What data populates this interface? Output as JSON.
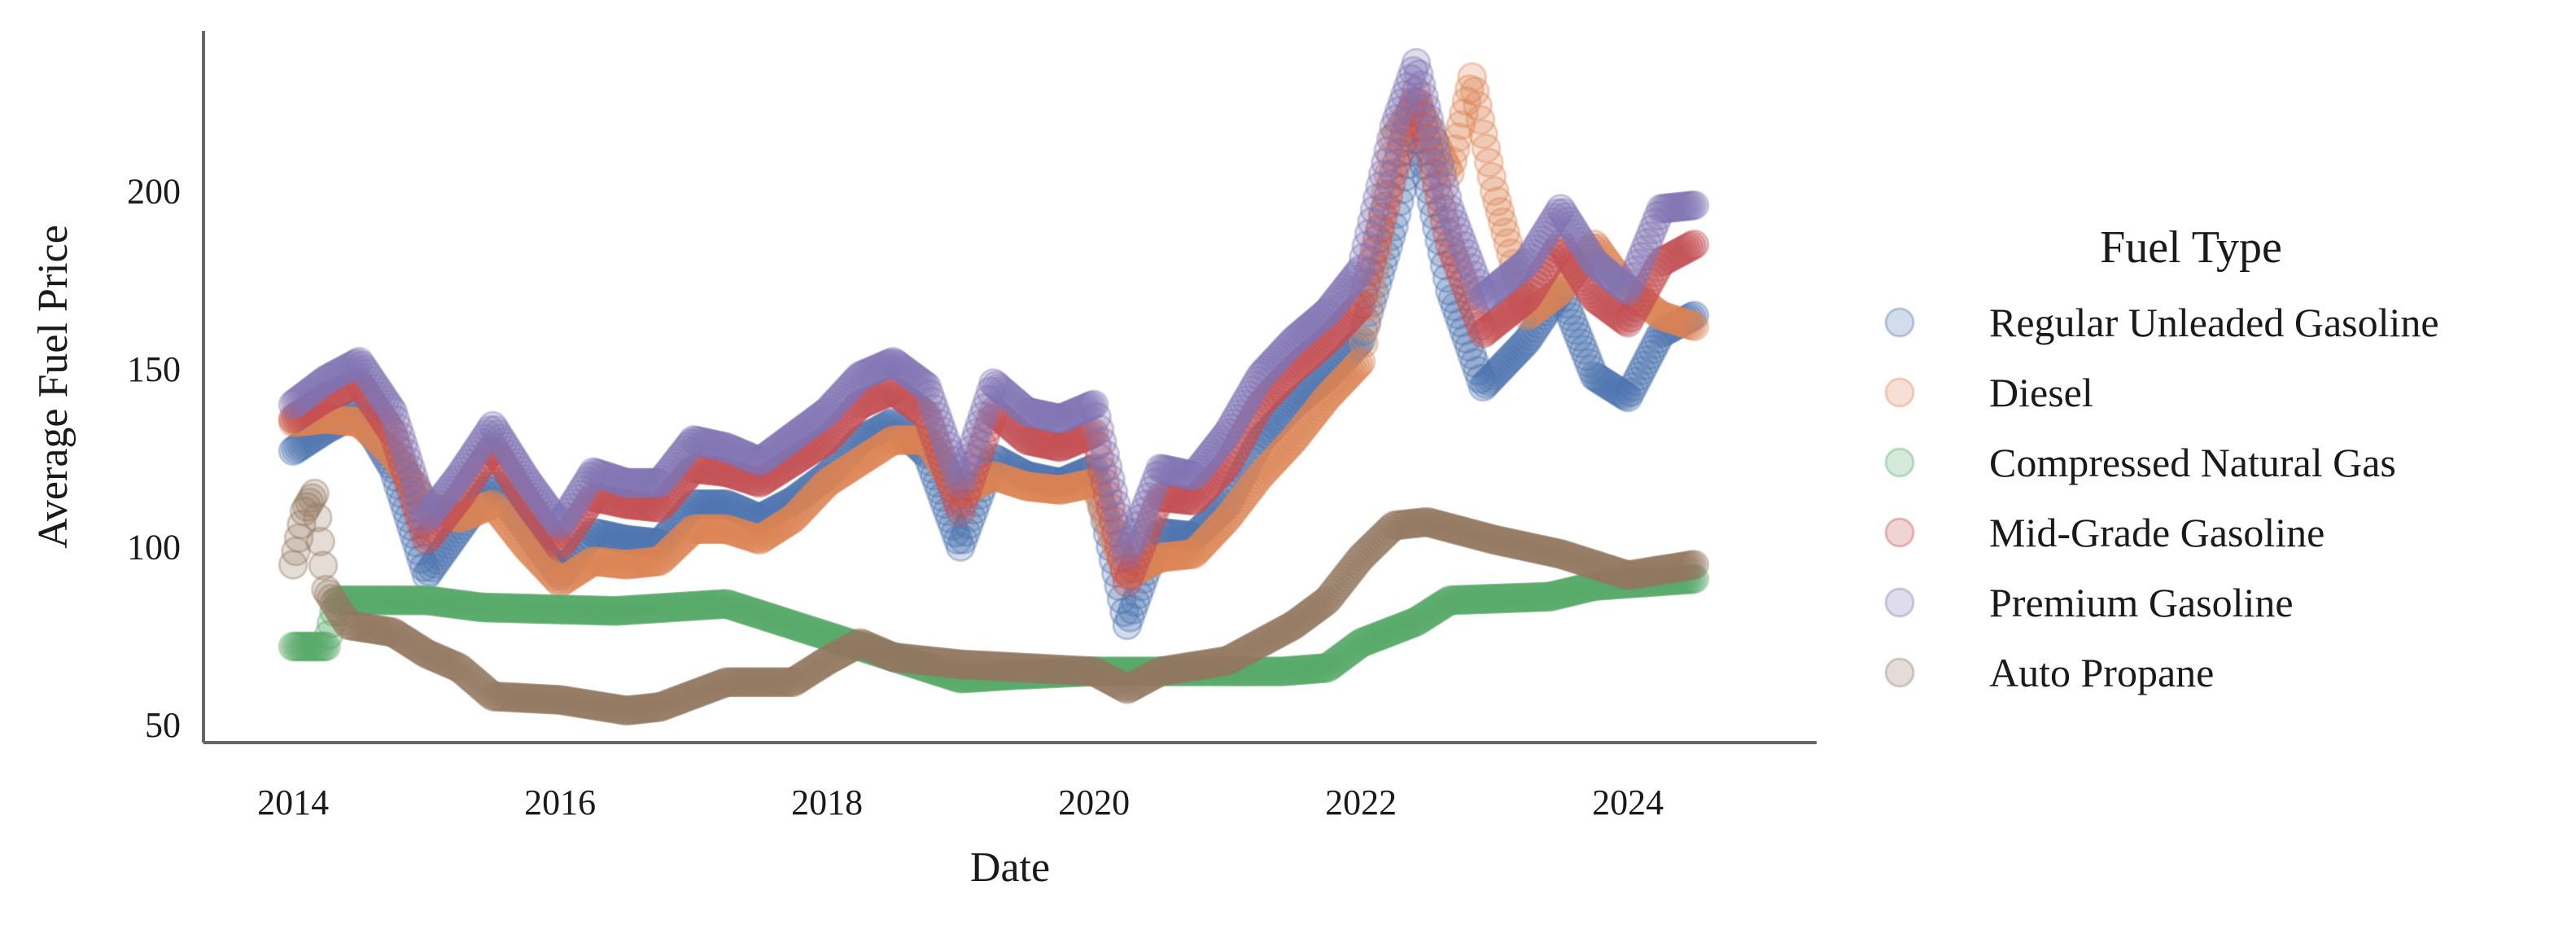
{
  "chart_data": {
    "type": "scatter",
    "xlabel": "Date",
    "ylabel": "Average Fuel Price",
    "xlim": [
      "2013-05-01",
      "2025-06-01"
    ],
    "ylim": [
      45,
      245
    ],
    "x_ticks": [
      {
        "value": "2014-01-01",
        "label": "2014"
      },
      {
        "value": "2016-01-01",
        "label": "2016"
      },
      {
        "value": "2018-01-01",
        "label": "2018"
      },
      {
        "value": "2020-01-01",
        "label": "2020"
      },
      {
        "value": "2022-01-01",
        "label": "2022"
      },
      {
        "value": "2024-01-01",
        "label": "2024"
      }
    ],
    "y_ticks": [
      {
        "value": 50,
        "label": "50"
      },
      {
        "value": 100,
        "label": "100"
      },
      {
        "value": 150,
        "label": "150"
      },
      {
        "value": 200,
        "label": "200"
      }
    ],
    "grid": false,
    "marker_opacity": 0.25,
    "legend": {
      "title": "Fuel Type",
      "placement": "right"
    },
    "series": [
      {
        "name": "Regular Unleaded Gasoline",
        "color": "#4c72b0",
        "points": [
          [
            "2014-01-01",
            127
          ],
          [
            "2014-04-01",
            133
          ],
          [
            "2014-07-01",
            138
          ],
          [
            "2014-10-01",
            122
          ],
          [
            "2015-01-01",
            92
          ],
          [
            "2015-04-01",
            105
          ],
          [
            "2015-07-01",
            118
          ],
          [
            "2015-10-01",
            105
          ],
          [
            "2016-01-01",
            92
          ],
          [
            "2016-04-01",
            104
          ],
          [
            "2016-07-01",
            102
          ],
          [
            "2016-10-01",
            101
          ],
          [
            "2017-01-01",
            112
          ],
          [
            "2017-04-01",
            112
          ],
          [
            "2017-07-01",
            108
          ],
          [
            "2017-10-01",
            113
          ],
          [
            "2018-01-01",
            120
          ],
          [
            "2018-04-01",
            130
          ],
          [
            "2018-07-01",
            135
          ],
          [
            "2018-10-01",
            126
          ],
          [
            "2019-01-01",
            100
          ],
          [
            "2019-04-01",
            125
          ],
          [
            "2019-07-01",
            120
          ],
          [
            "2019-10-01",
            118
          ],
          [
            "2020-01-01",
            122
          ],
          [
            "2020-04-01",
            78
          ],
          [
            "2020-07-01",
            104
          ],
          [
            "2020-10-01",
            103
          ],
          [
            "2021-01-01",
            112
          ],
          [
            "2021-04-01",
            130
          ],
          [
            "2021-07-01",
            140
          ],
          [
            "2021-10-01",
            148
          ],
          [
            "2022-01-01",
            158
          ],
          [
            "2022-04-01",
            190
          ],
          [
            "2022-06-01",
            218
          ],
          [
            "2022-09-01",
            172
          ],
          [
            "2022-12-01",
            145
          ],
          [
            "2023-04-01",
            158
          ],
          [
            "2023-07-01",
            172
          ],
          [
            "2023-10-01",
            148
          ],
          [
            "2024-01-01",
            142
          ],
          [
            "2024-04-01",
            160
          ],
          [
            "2024-07-01",
            165
          ]
        ]
      },
      {
        "name": "Diesel",
        "color": "#dd8452",
        "points": [
          [
            "2014-01-01",
            135
          ],
          [
            "2014-04-01",
            136
          ],
          [
            "2014-07-01",
            135
          ],
          [
            "2014-10-01",
            126
          ],
          [
            "2015-01-01",
            112
          ],
          [
            "2015-04-01",
            108
          ],
          [
            "2015-07-01",
            112
          ],
          [
            "2015-10-01",
            100
          ],
          [
            "2016-01-01",
            90
          ],
          [
            "2016-04-01",
            96
          ],
          [
            "2016-07-01",
            95
          ],
          [
            "2016-10-01",
            96
          ],
          [
            "2017-01-01",
            105
          ],
          [
            "2017-04-01",
            105
          ],
          [
            "2017-07-01",
            102
          ],
          [
            "2017-10-01",
            108
          ],
          [
            "2018-01-01",
            118
          ],
          [
            "2018-04-01",
            124
          ],
          [
            "2018-07-01",
            130
          ],
          [
            "2018-10-01",
            130
          ],
          [
            "2019-01-01",
            115
          ],
          [
            "2019-04-01",
            120
          ],
          [
            "2019-07-01",
            117
          ],
          [
            "2019-10-01",
            116
          ],
          [
            "2020-01-01",
            118
          ],
          [
            "2020-04-01",
            92
          ],
          [
            "2020-07-01",
            97
          ],
          [
            "2020-10-01",
            98
          ],
          [
            "2021-01-01",
            108
          ],
          [
            "2021-04-01",
            120
          ],
          [
            "2021-07-01",
            130
          ],
          [
            "2021-10-01",
            142
          ],
          [
            "2022-01-01",
            152
          ],
          [
            "2022-04-01",
            215
          ],
          [
            "2022-06-01",
            225
          ],
          [
            "2022-09-01",
            205
          ],
          [
            "2022-11-01",
            232
          ],
          [
            "2023-01-01",
            200
          ],
          [
            "2023-04-01",
            165
          ],
          [
            "2023-07-01",
            172
          ],
          [
            "2023-10-01",
            185
          ],
          [
            "2024-01-01",
            172
          ],
          [
            "2024-04-01",
            165
          ],
          [
            "2024-07-01",
            162
          ]
        ]
      },
      {
        "name": "Compressed Natural Gas",
        "color": "#55a868",
        "points": [
          [
            "2014-01-01",
            72
          ],
          [
            "2014-04-01",
            72
          ],
          [
            "2014-05-01",
            85
          ],
          [
            "2015-01-01",
            85
          ],
          [
            "2015-06-01",
            83
          ],
          [
            "2016-06-01",
            82
          ],
          [
            "2017-04-01",
            84
          ],
          [
            "2019-01-01",
            63
          ],
          [
            "2019-06-01",
            64
          ],
          [
            "2020-01-01",
            65
          ],
          [
            "2020-06-01",
            65
          ],
          [
            "2021-06-01",
            65
          ],
          [
            "2021-10-01",
            66
          ],
          [
            "2022-01-01",
            73
          ],
          [
            "2022-06-01",
            79
          ],
          [
            "2022-09-01",
            85
          ],
          [
            "2023-06-01",
            86
          ],
          [
            "2023-10-01",
            89
          ],
          [
            "2024-07-01",
            91
          ]
        ]
      },
      {
        "name": "Mid-Grade Gasoline",
        "color": "#c44e52",
        "points": [
          [
            "2014-01-01",
            136
          ],
          [
            "2014-04-01",
            142
          ],
          [
            "2014-07-01",
            146
          ],
          [
            "2014-10-01",
            132
          ],
          [
            "2015-01-01",
            102
          ],
          [
            "2015-04-01",
            114
          ],
          [
            "2015-07-01",
            128
          ],
          [
            "2015-10-01",
            113
          ],
          [
            "2016-01-01",
            100
          ],
          [
            "2016-04-01",
            114
          ],
          [
            "2016-07-01",
            112
          ],
          [
            "2016-10-01",
            111
          ],
          [
            "2017-01-01",
            122
          ],
          [
            "2017-04-01",
            121
          ],
          [
            "2017-07-01",
            118
          ],
          [
            "2017-10-01",
            124
          ],
          [
            "2018-01-01",
            130
          ],
          [
            "2018-04-01",
            140
          ],
          [
            "2018-07-01",
            144
          ],
          [
            "2018-10-01",
            137
          ],
          [
            "2019-01-01",
            110
          ],
          [
            "2019-04-01",
            138
          ],
          [
            "2019-07-01",
            130
          ],
          [
            "2019-10-01",
            128
          ],
          [
            "2020-01-01",
            132
          ],
          [
            "2020-04-01",
            90
          ],
          [
            "2020-07-01",
            114
          ],
          [
            "2020-10-01",
            113
          ],
          [
            "2021-01-01",
            123
          ],
          [
            "2021-04-01",
            140
          ],
          [
            "2021-07-01",
            150
          ],
          [
            "2021-10-01",
            158
          ],
          [
            "2022-01-01",
            168
          ],
          [
            "2022-04-01",
            205
          ],
          [
            "2022-06-01",
            228
          ],
          [
            "2022-09-01",
            185
          ],
          [
            "2022-12-01",
            160
          ],
          [
            "2023-04-01",
            170
          ],
          [
            "2023-07-01",
            185
          ],
          [
            "2023-10-01",
            170
          ],
          [
            "2024-01-01",
            163
          ],
          [
            "2024-04-01",
            180
          ],
          [
            "2024-07-01",
            185
          ]
        ]
      },
      {
        "name": "Premium Gasoline",
        "color": "#8172b3",
        "points": [
          [
            "2014-01-01",
            140
          ],
          [
            "2014-04-01",
            147
          ],
          [
            "2014-07-01",
            152
          ],
          [
            "2014-10-01",
            138
          ],
          [
            "2015-01-01",
            108
          ],
          [
            "2015-04-01",
            120
          ],
          [
            "2015-07-01",
            134
          ],
          [
            "2015-10-01",
            119
          ],
          [
            "2016-01-01",
            106
          ],
          [
            "2016-04-01",
            121
          ],
          [
            "2016-07-01",
            118
          ],
          [
            "2016-10-01",
            118
          ],
          [
            "2017-01-01",
            130
          ],
          [
            "2017-04-01",
            128
          ],
          [
            "2017-07-01",
            124
          ],
          [
            "2017-10-01",
            131
          ],
          [
            "2018-01-01",
            138
          ],
          [
            "2018-04-01",
            148
          ],
          [
            "2018-07-01",
            152
          ],
          [
            "2018-10-01",
            145
          ],
          [
            "2019-01-01",
            118
          ],
          [
            "2019-04-01",
            146
          ],
          [
            "2019-07-01",
            138
          ],
          [
            "2019-10-01",
            136
          ],
          [
            "2020-01-01",
            140
          ],
          [
            "2020-04-01",
            98
          ],
          [
            "2020-07-01",
            122
          ],
          [
            "2020-10-01",
            120
          ],
          [
            "2021-01-01",
            132
          ],
          [
            "2021-04-01",
            148
          ],
          [
            "2021-07-01",
            158
          ],
          [
            "2021-10-01",
            166
          ],
          [
            "2022-01-01",
            178
          ],
          [
            "2022-04-01",
            218
          ],
          [
            "2022-06-01",
            236
          ],
          [
            "2022-09-01",
            195
          ],
          [
            "2022-12-01",
            170
          ],
          [
            "2023-04-01",
            180
          ],
          [
            "2023-07-01",
            195
          ],
          [
            "2023-10-01",
            180
          ],
          [
            "2024-01-01",
            172
          ],
          [
            "2024-04-01",
            195
          ],
          [
            "2024-07-01",
            196
          ]
        ]
      },
      {
        "name": "Auto Propane",
        "color": "#937860",
        "points": [
          [
            "2014-01-01",
            95
          ],
          [
            "2014-02-01",
            110
          ],
          [
            "2014-03-01",
            115
          ],
          [
            "2014-04-01",
            88
          ],
          [
            "2014-06-01",
            78
          ],
          [
            "2014-10-01",
            76
          ],
          [
            "2015-01-01",
            70
          ],
          [
            "2015-04-01",
            66
          ],
          [
            "2015-07-01",
            58
          ],
          [
            "2016-01-01",
            57
          ],
          [
            "2016-07-01",
            54
          ],
          [
            "2016-10-01",
            55
          ],
          [
            "2017-04-01",
            62
          ],
          [
            "2017-10-01",
            62
          ],
          [
            "2018-01-01",
            68
          ],
          [
            "2018-04-01",
            73
          ],
          [
            "2018-07-01",
            69
          ],
          [
            "2019-01-01",
            67
          ],
          [
            "2019-07-01",
            66
          ],
          [
            "2020-01-01",
            65
          ],
          [
            "2020-04-01",
            60
          ],
          [
            "2020-07-01",
            65
          ],
          [
            "2021-01-01",
            68
          ],
          [
            "2021-07-01",
            78
          ],
          [
            "2021-10-01",
            85
          ],
          [
            "2022-01-01",
            97
          ],
          [
            "2022-04-01",
            106
          ],
          [
            "2022-07-01",
            107
          ],
          [
            "2023-01-01",
            102
          ],
          [
            "2023-07-01",
            98
          ],
          [
            "2024-01-01",
            92
          ],
          [
            "2024-07-01",
            95
          ]
        ]
      }
    ]
  }
}
